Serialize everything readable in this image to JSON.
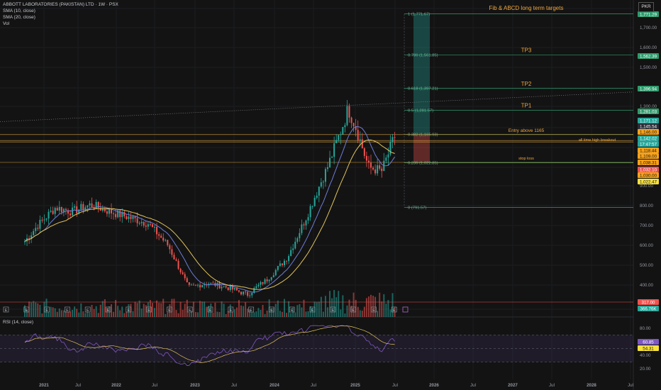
{
  "header": {
    "title": "ABBOTT LABORATORIES (PAKISTAN) LTD · 1W · PSX",
    "sma10": "SMA (10, close)",
    "sma20": "SMA (20, close)",
    "vol": "Vol",
    "rsi": "RSI (14, close)",
    "currency": "PKR"
  },
  "colors": {
    "background": "#131313",
    "up": "#26a69a",
    "down": "#ef5350",
    "sma10": "#6d7dd8",
    "sma20": "#e3c45c",
    "annotation": "#f0a63c",
    "fib": "#2e9b6c"
  },
  "chart_data": {
    "type": "candlestick",
    "symbol": "ABBOTT LABORATORIES (PAKISTAN) LTD",
    "interval": "1W",
    "exchange": "PSX",
    "y_axis_ticks": [
      "1,700.00",
      "1,600.00",
      "1,500.00",
      "1,300.00",
      "900.00",
      "800.00",
      "700.00",
      "600.00",
      "500.00",
      "400.00"
    ],
    "x_axis_ticks": [
      "2021",
      "Jul",
      "2022",
      "Jul",
      "2023",
      "Jul",
      "2024",
      "Jul",
      "2025",
      "Jul",
      "2026",
      "Jul",
      "2027",
      "Jul",
      "2028",
      "Jul"
    ],
    "price_path": [
      [
        "2020-10",
        620
      ],
      [
        "2020-12",
        700
      ],
      [
        "2021-03",
        790
      ],
      [
        "2021-06",
        770
      ],
      [
        "2021-09",
        805
      ],
      [
        "2021-12",
        770
      ],
      [
        "2022-03",
        740
      ],
      [
        "2022-06",
        710
      ],
      [
        "2022-09",
        600
      ],
      [
        "2022-12",
        390
      ],
      [
        "2023-03",
        410
      ],
      [
        "2023-06",
        390
      ],
      [
        "2023-09",
        360
      ],
      [
        "2023-12",
        430
      ],
      [
        "2024-03",
        540
      ],
      [
        "2024-06",
        750
      ],
      [
        "2024-09",
        1000
      ],
      [
        "2024-12",
        1290
      ],
      [
        "2025-01",
        1210
      ],
      [
        "2025-03",
        1000
      ],
      [
        "2025-05",
        980
      ],
      [
        "2025-07",
        1160
      ]
    ],
    "fib_levels": [
      {
        "label": "1 (1,771.67)",
        "value": 1771.67
      },
      {
        "label": "0.786 (1,561.85)",
        "value": 1561.85
      },
      {
        "label": "0.618 (1,397.21)",
        "value": 1397.21
      },
      {
        "label": "0.5 (1,281.57)",
        "value": 1281.57
      },
      {
        "label": "0.382 (1,165.93)",
        "value": 1165.93
      },
      {
        "label": "0.236 (1,022.85)",
        "value": 1022.85
      },
      {
        "label": "0 (791.57)",
        "value": 791.57
      }
    ],
    "annotations": [
      {
        "text": "Fib  & ABCD long term targets",
        "value": 1771.29
      },
      {
        "text": "TP3",
        "value": 1562.39
      },
      {
        "text": "TP2",
        "value": 1396.94
      },
      {
        "text": "TP1",
        "value": 1281.03
      },
      {
        "text": "Entry above 1165",
        "value": 1165
      },
      {
        "text": "all time high breakout",
        "value": 1135
      },
      {
        "text": "stop loss",
        "value": 1025
      }
    ],
    "price_labels": [
      {
        "text": "1,771.29",
        "bg": "#2e9b6c"
      },
      {
        "text": "1,562.39",
        "bg": "#2e9b6c"
      },
      {
        "text": "1,396.94",
        "bg": "#2e9b6c"
      },
      {
        "text": "1,281.03",
        "bg": "#2e9b6c"
      },
      {
        "text": "1,171.12",
        "bg": "#26a69a"
      },
      {
        "text": "1,145.54",
        "bg": "#2a2e39"
      },
      {
        "text": "1,146.00",
        "bg": "#f7a21b"
      },
      {
        "text": "1,142.02",
        "bg": "#26a69a"
      },
      {
        "text": "17:47:57",
        "bg": "#26a69a"
      },
      {
        "text": "1,118.44",
        "bg": "#f7a21b"
      },
      {
        "text": "1,109.00",
        "bg": "#f7a21b"
      },
      {
        "text": "1,038.31",
        "bg": "#f7a21b"
      },
      {
        "text": "1,032.10",
        "bg": "#ef5350"
      },
      {
        "text": "1,030.00",
        "bg": "#f7a21b"
      },
      {
        "text": "1,022.47",
        "bg": "#f7e13c"
      }
    ],
    "volume_labels": [
      {
        "text": "317.00",
        "bg": "#ef5350"
      },
      {
        "text": "366.76K",
        "bg": "#26a69a"
      }
    ],
    "rsi": {
      "ticks": [
        "80.00",
        "60.00",
        "40.00",
        "20.00"
      ],
      "value_labels": [
        {
          "text": "60.85",
          "bg": "#7e57c2"
        },
        {
          "text": "54.31",
          "bg": "#f7e13c"
        }
      ]
    }
  }
}
